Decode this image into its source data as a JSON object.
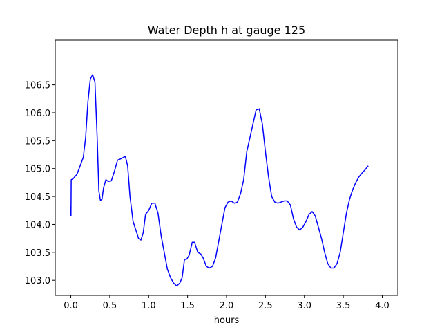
{
  "chart_data": {
    "type": "line",
    "title": "Water Depth h at gauge 125",
    "xlabel": "hours",
    "ylabel": "",
    "xlim": [
      -0.2,
      4.2
    ],
    "ylim": [
      102.73,
      107.3
    ],
    "xticks": [
      0.0,
      0.5,
      1.0,
      1.5,
      2.0,
      2.5,
      3.0,
      3.5,
      4.0
    ],
    "xtick_labels": [
      "0.0",
      "0.5",
      "1.0",
      "1.5",
      "2.0",
      "2.5",
      "3.0",
      "3.5",
      "4.0"
    ],
    "yticks": [
      103.0,
      103.5,
      104.0,
      104.5,
      105.0,
      105.5,
      106.0,
      106.5
    ],
    "ytick_labels": [
      "103.0",
      "103.5",
      "104.0",
      "104.5",
      "105.0",
      "105.5",
      "106.0",
      "106.5"
    ],
    "grid": false,
    "series": [
      {
        "color": "#0000ff",
        "points": [
          [
            0.0,
            104.32
          ],
          [
            0.002,
            104.15
          ],
          [
            0.005,
            104.8
          ],
          [
            0.03,
            104.82
          ],
          [
            0.08,
            104.9
          ],
          [
            0.12,
            105.05
          ],
          [
            0.16,
            105.2
          ],
          [
            0.19,
            105.55
          ],
          [
            0.22,
            106.2
          ],
          [
            0.25,
            106.6
          ],
          [
            0.28,
            106.68
          ],
          [
            0.31,
            106.55
          ],
          [
            0.34,
            105.5
          ],
          [
            0.36,
            104.6
          ],
          [
            0.38,
            104.43
          ],
          [
            0.4,
            104.45
          ],
          [
            0.42,
            104.65
          ],
          [
            0.45,
            104.8
          ],
          [
            0.48,
            104.77
          ],
          [
            0.52,
            104.78
          ],
          [
            0.56,
            104.95
          ],
          [
            0.6,
            105.15
          ],
          [
            0.65,
            105.18
          ],
          [
            0.7,
            105.22
          ],
          [
            0.73,
            105.05
          ],
          [
            0.76,
            104.5
          ],
          [
            0.8,
            104.05
          ],
          [
            0.84,
            103.88
          ],
          [
            0.87,
            103.75
          ],
          [
            0.9,
            103.72
          ],
          [
            0.93,
            103.85
          ],
          [
            0.96,
            104.18
          ],
          [
            1.0,
            104.25
          ],
          [
            1.04,
            104.38
          ],
          [
            1.08,
            104.38
          ],
          [
            1.12,
            104.2
          ],
          [
            1.16,
            103.8
          ],
          [
            1.2,
            103.5
          ],
          [
            1.24,
            103.2
          ],
          [
            1.28,
            103.05
          ],
          [
            1.32,
            102.95
          ],
          [
            1.36,
            102.9
          ],
          [
            1.4,
            102.95
          ],
          [
            1.43,
            103.05
          ],
          [
            1.46,
            103.37
          ],
          [
            1.49,
            103.38
          ],
          [
            1.52,
            103.45
          ],
          [
            1.56,
            103.68
          ],
          [
            1.59,
            103.68
          ],
          [
            1.63,
            103.5
          ],
          [
            1.67,
            103.47
          ],
          [
            1.7,
            103.4
          ],
          [
            1.74,
            103.25
          ],
          [
            1.78,
            103.22
          ],
          [
            1.82,
            103.25
          ],
          [
            1.86,
            103.4
          ],
          [
            1.9,
            103.7
          ],
          [
            1.94,
            104.0
          ],
          [
            1.98,
            104.3
          ],
          [
            2.02,
            104.4
          ],
          [
            2.06,
            104.42
          ],
          [
            2.1,
            104.38
          ],
          [
            2.14,
            104.4
          ],
          [
            2.18,
            104.55
          ],
          [
            2.22,
            104.8
          ],
          [
            2.26,
            105.3
          ],
          [
            2.3,
            105.55
          ],
          [
            2.34,
            105.8
          ],
          [
            2.38,
            106.05
          ],
          [
            2.42,
            106.07
          ],
          [
            2.46,
            105.8
          ],
          [
            2.5,
            105.3
          ],
          [
            2.54,
            104.85
          ],
          [
            2.58,
            104.5
          ],
          [
            2.62,
            104.4
          ],
          [
            2.66,
            104.38
          ],
          [
            2.7,
            104.4
          ],
          [
            2.74,
            104.42
          ],
          [
            2.78,
            104.42
          ],
          [
            2.82,
            104.35
          ],
          [
            2.86,
            104.1
          ],
          [
            2.9,
            103.95
          ],
          [
            2.94,
            103.9
          ],
          [
            2.98,
            103.95
          ],
          [
            3.02,
            104.05
          ],
          [
            3.06,
            104.18
          ],
          [
            3.1,
            104.23
          ],
          [
            3.14,
            104.15
          ],
          [
            3.18,
            103.95
          ],
          [
            3.22,
            103.75
          ],
          [
            3.26,
            103.5
          ],
          [
            3.3,
            103.3
          ],
          [
            3.34,
            103.22
          ],
          [
            3.38,
            103.22
          ],
          [
            3.42,
            103.3
          ],
          [
            3.46,
            103.5
          ],
          [
            3.5,
            103.85
          ],
          [
            3.54,
            104.2
          ],
          [
            3.58,
            104.45
          ],
          [
            3.62,
            104.62
          ],
          [
            3.66,
            104.75
          ],
          [
            3.7,
            104.85
          ],
          [
            3.74,
            104.92
          ],
          [
            3.78,
            104.98
          ],
          [
            3.82,
            105.05
          ]
        ]
      }
    ]
  }
}
